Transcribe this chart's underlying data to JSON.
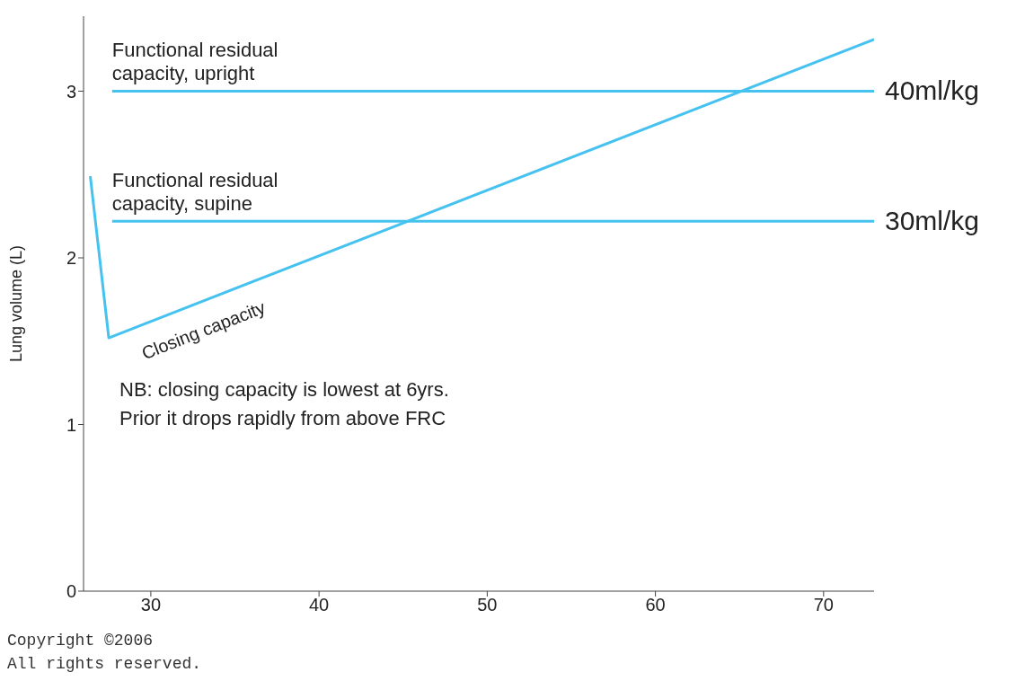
{
  "chart_data": {
    "type": "line",
    "ylabel": "Lung volume (L)",
    "xlim": [
      26,
      73
    ],
    "xticks": [
      30,
      40,
      50,
      60,
      70
    ],
    "ylim": [
      0,
      3.45
    ],
    "yticks": [
      0,
      1,
      2,
      3
    ],
    "marker": "none",
    "line_style": "solid",
    "series": [
      {
        "color": "#45c2f0",
        "x": [
          26.4,
          27.5,
          73
        ],
        "values": [
          2.49,
          1.52,
          3.31
        ]
      },
      {
        "color": "#45c2f0",
        "x": [
          27.7,
          73
        ],
        "values": [
          3.0,
          3.0
        ]
      },
      {
        "color": "#45c2f0",
        "x": [
          27.7,
          73
        ],
        "values": [
          2.22,
          2.22
        ]
      }
    ],
    "annotations": [
      {
        "text": "Functional residual capacity, upright",
        "x": 27.7,
        "y": 3.0
      },
      {
        "text": "Functional residual capacity, supine",
        "x": 27.7,
        "y": 2.22
      },
      {
        "text": "Closing capacity",
        "x": 29,
        "y": 1.55
      },
      {
        "text": "40ml/kg",
        "x": 73,
        "y": 3.0
      },
      {
        "text": "30ml/kg",
        "x": 73,
        "y": 2.22
      },
      "NB: closing capacity is lowest at 6yrs. Prior it drops rapidly from above FRC",
      "Copyright ©2006",
      "All rights reserved."
    ]
  }
}
